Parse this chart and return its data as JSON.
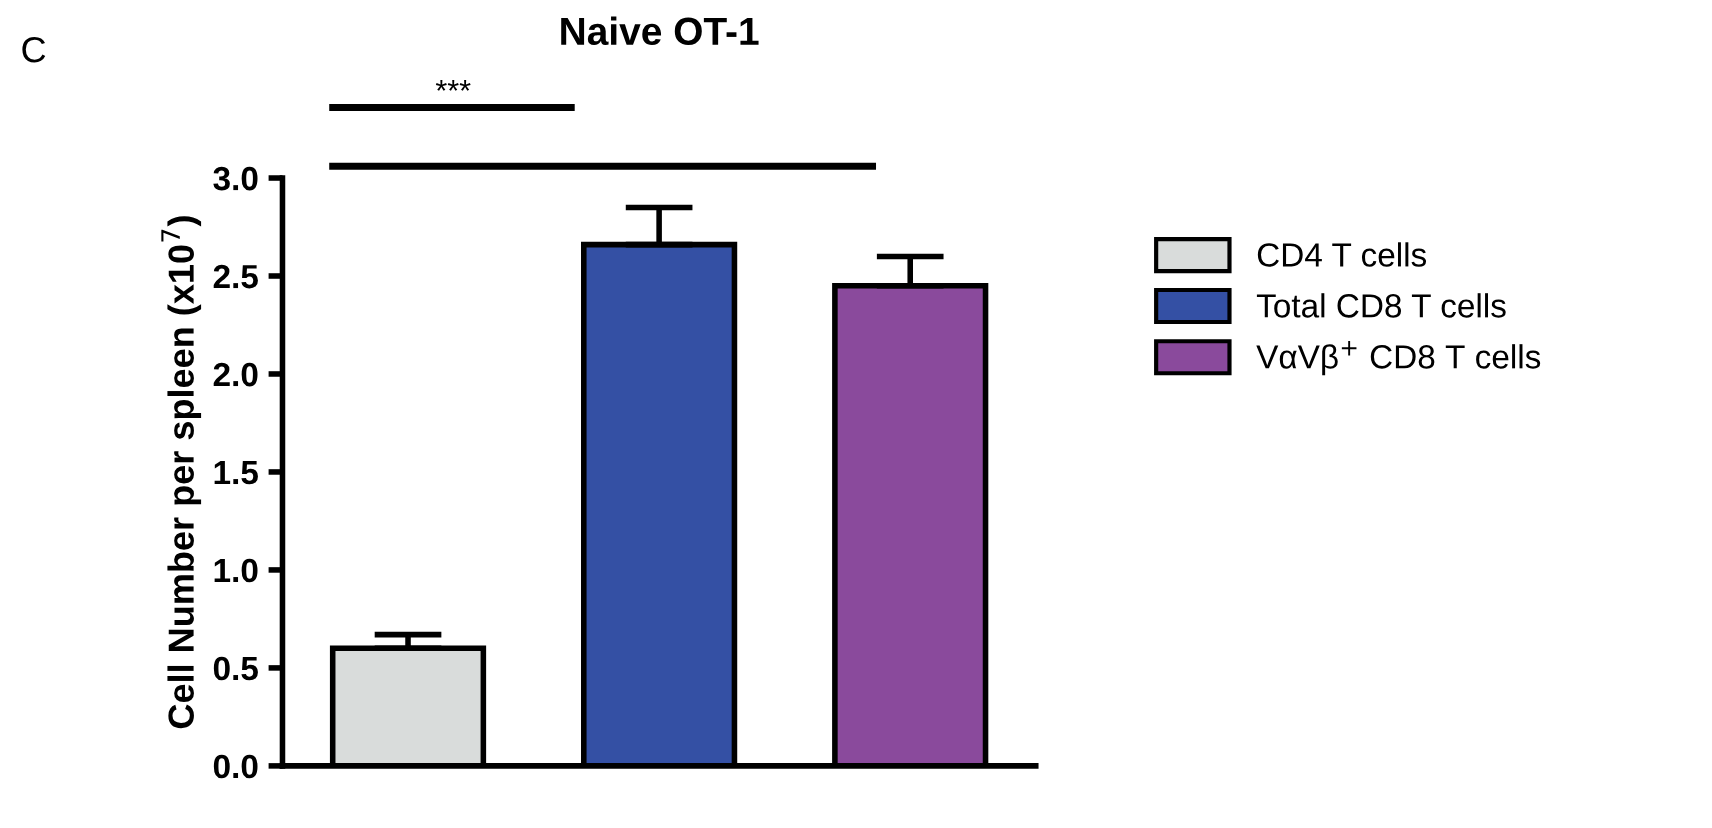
{
  "chart_data": {
    "type": "bar",
    "title": "Naive OT-1",
    "ylabel": "Cell Number per spleen (x10$^{7}$)",
    "categories": [
      null,
      null,
      null
    ],
    "series": [
      {
        "name": "CD4 T cells",
        "color": "#d9dcdb",
        "values": [
          0.6,
          null,
          null
        ],
        "errors": [
          0.07,
          null,
          null
        ]
      },
      {
        "name": "Total CD8 T cells",
        "color": "#3450a4",
        "values": [
          null,
          2.66,
          null
        ],
        "errors": [
          null,
          0.19,
          null
        ]
      },
      {
        "name": "VαVβ$^{+}$ CD8 T cells",
        "color": "#8a4a9c",
        "values": [
          null,
          null,
          2.45
        ],
        "errors": [
          null,
          null,
          0.15
        ]
      }
    ],
    "ylim": [
      0,
      3.0
    ],
    "yticks": [
      {
        "value": 0,
        "label": "0.0"
      },
      0.5,
      {
        "value": 1,
        "label": "1.0"
      },
      1.5,
      {
        "value": 2,
        "label": "2.0"
      },
      2.5,
      {
        "value": 3,
        "label": "3.0"
      }
    ],
    "grid": false,
    "legend": "right",
    "annotations": [
      "C",
      "***"
    ]
  }
}
